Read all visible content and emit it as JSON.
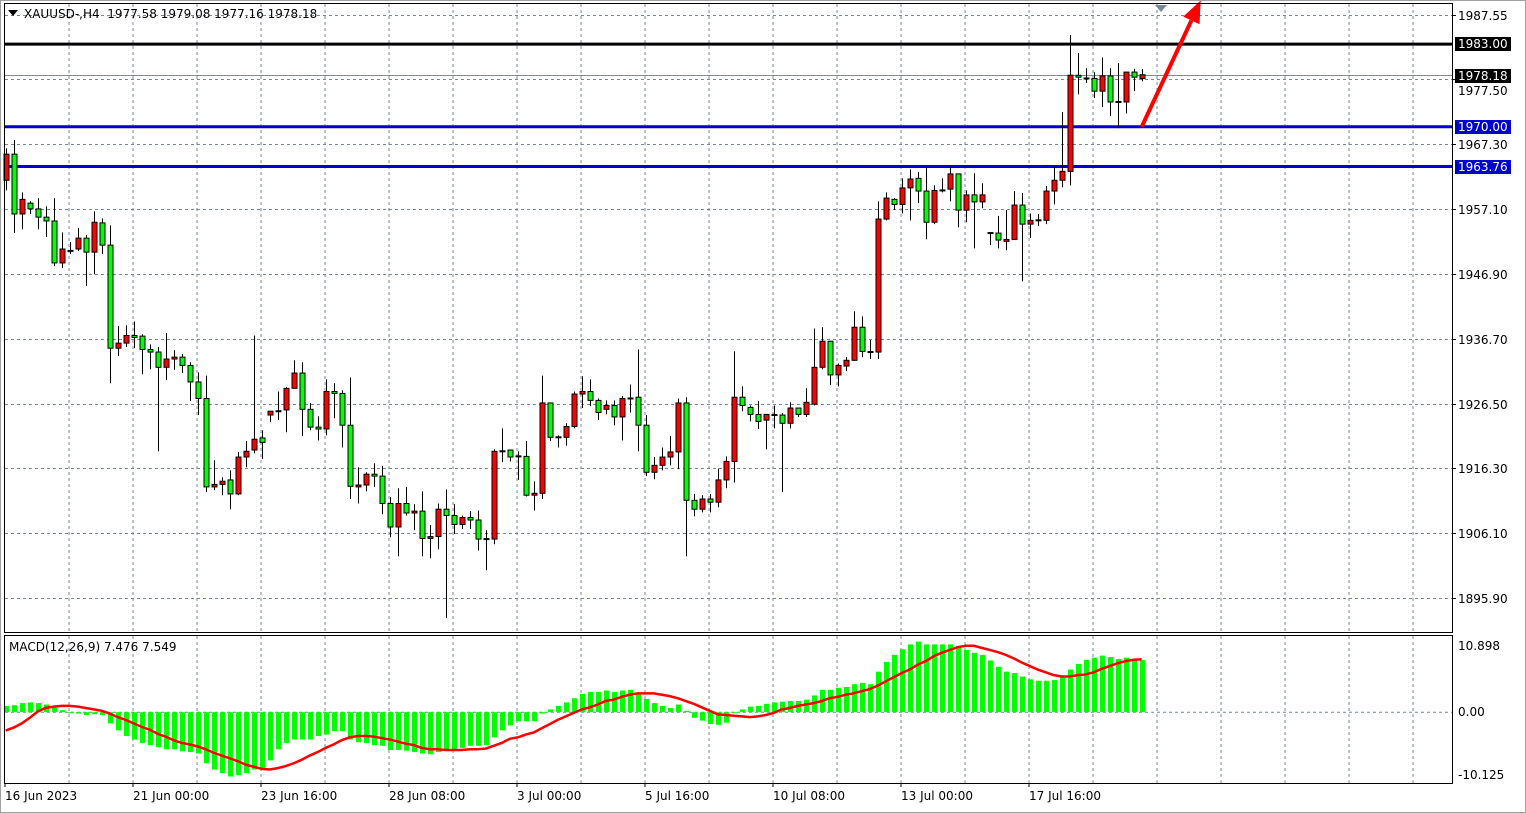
{
  "header": {
    "symbol_label": "XAUUSD-,H4",
    "ohlc": "1977.58 1979.08 1977.16 1978.18"
  },
  "colors": {
    "bull_candle": "#ff0000",
    "bear_candle": "#00ff00",
    "grid": "#778899",
    "support_line": "#0000cc",
    "resistance_line": "#000000",
    "arrow": "#ff0000",
    "macd_histogram": "#00ff00",
    "macd_signal": "#ff0000"
  },
  "chart_data": [
    {
      "type": "candlestick",
      "timeframe": "H4",
      "ylim": [
        1890.6,
        1989.3
      ],
      "grid": true,
      "y_ticks": [
        "1987.55",
        "1977.50",
        "1967.30",
        "1957.10",
        "1946.90",
        "1936.70",
        "1926.50",
        "1916.30",
        "1906.10",
        "1895.90"
      ],
      "x_ticks": [
        "16 Jun 2023",
        "21 Jun 00:00",
        "23 Jun 16:00",
        "28 Jun 08:00",
        "3 Jul 00:00",
        "5 Jul 16:00",
        "10 Jul 08:00",
        "13 Jul 00:00",
        "17 Jul 16:00"
      ],
      "x_tick_every_bars": 16,
      "bid_price": "1978.18",
      "horizontal_lines": [
        {
          "price": "1983.00",
          "color": "#000000"
        },
        {
          "price": "1970.00",
          "color": "#0000cc"
        },
        {
          "price": "1963.76",
          "color": "#0000cc"
        }
      ],
      "arrow": {
        "from_price": 1970.0,
        "from_bar": 142,
        "to_price": 1990.0,
        "to_bar": 149,
        "direction": "up"
      },
      "ohlc": [
        [
          1961.6,
          1966.6,
          1960.0,
          1965.7
        ],
        [
          1965.7,
          1967.9,
          1953.3,
          1956.3
        ],
        [
          1956.3,
          1959.7,
          1953.9,
          1958.6
        ],
        [
          1958.0,
          1958.3,
          1956.3,
          1957.1
        ],
        [
          1957.1,
          1958.8,
          1953.9,
          1955.8
        ],
        [
          1955.8,
          1957.5,
          1952.7,
          1955.2
        ],
        [
          1955.2,
          1958.8,
          1948.1,
          1948.6
        ],
        [
          1948.6,
          1953.4,
          1947.8,
          1950.8
        ],
        [
          1950.5,
          1951.9,
          1950.0,
          1950.5
        ],
        [
          1950.8,
          1954.1,
          1950.5,
          1952.5
        ],
        [
          1952.5,
          1953.0,
          1945.0,
          1950.3
        ],
        [
          1950.3,
          1956.7,
          1946.8,
          1955.0
        ],
        [
          1954.9,
          1955.6,
          1950.0,
          1951.4
        ],
        [
          1951.4,
          1954.5,
          1929.7,
          1935.2
        ],
        [
          1935.2,
          1938.7,
          1934.0,
          1936.0
        ],
        [
          1936.0,
          1938.8,
          1935.4,
          1937.2
        ],
        [
          1937.2,
          1939.4,
          1935.2,
          1936.9
        ],
        [
          1937.1,
          1937.4,
          1931.1,
          1935.0
        ],
        [
          1935.0,
          1935.8,
          1931.9,
          1934.6
        ],
        [
          1934.6,
          1935.4,
          1919.0,
          1932.2
        ],
        [
          1932.2,
          1937.6,
          1930.2,
          1933.5
        ],
        [
          1933.5,
          1934.9,
          1931.8,
          1933.8
        ],
        [
          1933.8,
          1934.3,
          1931.3,
          1932.5
        ],
        [
          1932.5,
          1933.0,
          1926.9,
          1929.9
        ],
        [
          1929.9,
          1931.4,
          1924.7,
          1927.3
        ],
        [
          1927.3,
          1930.9,
          1912.6,
          1913.4
        ],
        [
          1913.4,
          1917.6,
          1912.9,
          1913.8
        ],
        [
          1913.8,
          1914.9,
          1912.1,
          1914.3
        ],
        [
          1914.5,
          1916.0,
          1909.9,
          1912.3
        ],
        [
          1912.3,
          1918.9,
          1912.1,
          1918.1
        ],
        [
          1918.1,
          1920.6,
          1916.5,
          1919.0
        ],
        [
          1919.2,
          1937.2,
          1918.7,
          1920.9
        ],
        [
          1921.1,
          1922.3,
          1917.8,
          1920.4
        ],
        [
          1924.7,
          1925.3,
          1923.6,
          1925.3
        ],
        [
          1925.3,
          1928.4,
          1923.9,
          1925.3
        ],
        [
          1925.5,
          1929.1,
          1922.0,
          1928.9
        ],
        [
          1928.9,
          1933.3,
          1928.9,
          1931.3
        ],
        [
          1931.3,
          1933.0,
          1921.4,
          1925.6
        ],
        [
          1925.6,
          1926.6,
          1922.3,
          1922.8
        ],
        [
          1922.8,
          1924.5,
          1920.7,
          1922.5
        ],
        [
          1922.5,
          1930.3,
          1921.5,
          1928.4
        ],
        [
          1928.4,
          1929.7,
          1924.2,
          1928.1
        ],
        [
          1928.1,
          1928.6,
          1919.6,
          1923.1
        ],
        [
          1923.1,
          1930.6,
          1911.5,
          1913.5
        ],
        [
          1913.4,
          1916.5,
          1910.8,
          1913.7
        ],
        [
          1913.7,
          1915.7,
          1912.7,
          1915.4
        ],
        [
          1915.4,
          1917.1,
          1913.4,
          1915.1
        ],
        [
          1915.1,
          1916.7,
          1909.1,
          1910.8
        ],
        [
          1910.8,
          1911.8,
          1905.5,
          1907.1
        ],
        [
          1907.1,
          1913.2,
          1902.5,
          1910.8
        ],
        [
          1910.8,
          1913.4,
          1908.9,
          1909.3
        ],
        [
          1909.3,
          1910.7,
          1906.6,
          1909.6
        ],
        [
          1909.6,
          1912.7,
          1902.5,
          1905.3
        ],
        [
          1905.3,
          1907.4,
          1902.2,
          1905.6
        ],
        [
          1905.6,
          1910.8,
          1903.6,
          1909.9
        ],
        [
          1909.9,
          1913.0,
          1892.8,
          1908.9
        ],
        [
          1908.9,
          1910.7,
          1906.0,
          1907.5
        ],
        [
          1907.5,
          1908.9,
          1906.8,
          1908.6
        ],
        [
          1908.6,
          1909.6,
          1906.8,
          1908.2
        ],
        [
          1908.2,
          1909.7,
          1903.4,
          1905.2
        ],
        [
          1905.2,
          1906.6,
          1900.3,
          1905.2
        ],
        [
          1905.2,
          1919.3,
          1904.4,
          1919.0
        ],
        [
          1919.0,
          1922.6,
          1917.3,
          1919.0
        ],
        [
          1919.2,
          1919.2,
          1917.4,
          1918.1
        ],
        [
          1918.1,
          1919.0,
          1914.5,
          1918.2
        ],
        [
          1918.2,
          1920.6,
          1911.9,
          1912.1
        ],
        [
          1912.1,
          1914.3,
          1909.7,
          1912.4
        ],
        [
          1912.4,
          1930.9,
          1911.5,
          1926.6
        ],
        [
          1926.6,
          1926.6,
          1920.6,
          1921.2
        ],
        [
          1921.2,
          1921.5,
          1919.6,
          1921.2
        ],
        [
          1921.2,
          1923.4,
          1919.9,
          1922.9
        ],
        [
          1922.9,
          1928.4,
          1922.6,
          1928.0
        ],
        [
          1928.0,
          1930.8,
          1925.8,
          1928.4
        ],
        [
          1928.4,
          1930.3,
          1926.1,
          1927.0
        ],
        [
          1927.0,
          1927.3,
          1923.9,
          1925.1
        ],
        [
          1925.6,
          1927.0,
          1924.8,
          1926.2
        ],
        [
          1926.2,
          1927.0,
          1923.1,
          1924.4
        ],
        [
          1924.4,
          1927.7,
          1920.7,
          1927.3
        ],
        [
          1927.3,
          1929.5,
          1925.1,
          1927.3
        ],
        [
          1927.5,
          1935.0,
          1919.0,
          1923.1
        ],
        [
          1923.1,
          1924.7,
          1915.1,
          1915.7
        ],
        [
          1915.7,
          1918.1,
          1914.6,
          1916.8
        ],
        [
          1916.8,
          1919.6,
          1916.0,
          1918.1
        ],
        [
          1918.1,
          1921.4,
          1916.8,
          1918.9
        ],
        [
          1918.9,
          1927.3,
          1916.2,
          1926.6
        ],
        [
          1926.6,
          1927.5,
          1902.5,
          1911.3
        ],
        [
          1911.3,
          1912.3,
          1908.8,
          1909.9
        ],
        [
          1909.9,
          1912.1,
          1909.4,
          1911.5
        ],
        [
          1911.5,
          1912.3,
          1909.4,
          1911.0
        ],
        [
          1911.0,
          1916.3,
          1910.2,
          1914.5
        ],
        [
          1914.5,
          1918.2,
          1913.2,
          1917.4
        ],
        [
          1917.4,
          1934.7,
          1914.1,
          1927.5
        ],
        [
          1927.5,
          1929.2,
          1925.3,
          1926.2
        ],
        [
          1925.9,
          1926.2,
          1923.7,
          1924.8
        ],
        [
          1924.8,
          1926.9,
          1922.5,
          1923.7
        ],
        [
          1923.9,
          1924.8,
          1919.3,
          1924.8
        ],
        [
          1924.7,
          1926.2,
          1922.6,
          1924.7
        ],
        [
          1924.7,
          1925.0,
          1912.6,
          1923.4
        ],
        [
          1923.4,
          1926.7,
          1922.6,
          1925.8
        ],
        [
          1925.8,
          1925.8,
          1924.4,
          1924.8
        ],
        [
          1924.8,
          1928.9,
          1924.4,
          1926.7
        ],
        [
          1926.4,
          1938.3,
          1926.2,
          1932.2
        ],
        [
          1932.2,
          1938.5,
          1931.9,
          1936.3
        ],
        [
          1936.3,
          1936.3,
          1929.4,
          1931.0
        ],
        [
          1931.0,
          1932.8,
          1929.2,
          1932.5
        ],
        [
          1932.4,
          1933.8,
          1931.6,
          1933.3
        ],
        [
          1933.3,
          1941.0,
          1933.2,
          1938.5
        ],
        [
          1938.5,
          1940.2,
          1933.8,
          1934.7
        ],
        [
          1934.6,
          1936.5,
          1933.5,
          1934.6
        ],
        [
          1934.6,
          1958.3,
          1933.5,
          1955.5
        ],
        [
          1955.5,
          1959.7,
          1955.3,
          1958.8
        ],
        [
          1958.6,
          1958.8,
          1956.9,
          1957.8
        ],
        [
          1957.8,
          1961.9,
          1956.4,
          1960.4
        ],
        [
          1960.4,
          1963.3,
          1955.3,
          1961.8
        ],
        [
          1961.9,
          1962.9,
          1958.0,
          1959.9
        ],
        [
          1959.9,
          1963.5,
          1952.3,
          1955.0
        ],
        [
          1955.0,
          1960.8,
          1954.7,
          1960.0
        ],
        [
          1960.0,
          1961.9,
          1959.7,
          1960.0
        ],
        [
          1960.2,
          1963.7,
          1958.3,
          1962.6
        ],
        [
          1962.6,
          1962.6,
          1954.2,
          1956.9
        ],
        [
          1956.9,
          1960.0,
          1955.0,
          1959.3
        ],
        [
          1959.3,
          1962.7,
          1950.9,
          1958.2
        ],
        [
          1958.2,
          1961.1,
          1957.2,
          1959.3
        ],
        [
          1953.3,
          1953.4,
          1951.4,
          1953.3
        ],
        [
          1953.3,
          1956.0,
          1950.9,
          1952.2
        ],
        [
          1952.0,
          1956.9,
          1950.6,
          1952.3
        ],
        [
          1952.3,
          1959.9,
          1952.2,
          1957.7
        ],
        [
          1957.7,
          1959.6,
          1945.7,
          1954.7
        ],
        [
          1954.7,
          1956.4,
          1952.5,
          1955.3
        ],
        [
          1955.3,
          1956.3,
          1954.4,
          1955.3
        ],
        [
          1955.3,
          1960.7,
          1954.7,
          1959.9
        ],
        [
          1959.9,
          1963.7,
          1957.8,
          1961.6
        ],
        [
          1961.6,
          1972.3,
          1960.5,
          1963.0
        ],
        [
          1963.0,
          1984.4,
          1960.8,
          1978.1
        ],
        [
          1978.1,
          1981.6,
          1975.1,
          1977.8
        ],
        [
          1977.6,
          1979.2,
          1976.9,
          1977.6
        ],
        [
          1977.6,
          1978.6,
          1974.5,
          1975.6
        ],
        [
          1975.6,
          1980.9,
          1973.1,
          1978.0
        ],
        [
          1978.0,
          1979.2,
          1971.7,
          1973.9
        ],
        [
          1973.9,
          1980.0,
          1969.8,
          1973.9
        ],
        [
          1973.9,
          1978.6,
          1972.1,
          1978.6
        ],
        [
          1978.6,
          1979.1,
          1975.6,
          1977.8
        ],
        [
          1977.58,
          1979.08,
          1977.16,
          1978.18
        ]
      ]
    },
    {
      "type": "bar+line",
      "title": "MACD(12,26,9) 7.476 7.549",
      "ylim": [
        -10.125,
        10.898
      ],
      "y_ticks": [
        "10.898",
        "0.00",
        "-10.125"
      ],
      "histogram": [
        0.9,
        1.0,
        1.3,
        1.4,
        1.3,
        1.1,
        0.6,
        0.3,
        -0.1,
        -0.2,
        -0.4,
        -0.3,
        -0.4,
        -1.6,
        -2.6,
        -3.4,
        -3.9,
        -4.4,
        -4.7,
        -5.0,
        -5.3,
        -5.3,
        -5.6,
        -5.7,
        -5.9,
        -7.3,
        -8.2,
        -8.7,
        -9.2,
        -9.0,
        -8.7,
        -8.2,
        -8.2,
        -6.9,
        -5.3,
        -4.4,
        -3.9,
        -3.9,
        -3.9,
        -3.4,
        -3.2,
        -2.7,
        -2.7,
        -3.9,
        -4.3,
        -4.4,
        -4.7,
        -4.8,
        -5.4,
        -5.4,
        -5.5,
        -5.7,
        -5.9,
        -6.0,
        -5.7,
        -5.4,
        -5.3,
        -5.1,
        -4.8,
        -4.8,
        -4.7,
        -3.6,
        -2.6,
        -1.9,
        -1.3,
        -1.3,
        -1.3,
        -0.2,
        0.4,
        0.9,
        1.4,
        2.0,
        2.6,
        2.9,
        2.9,
        3.1,
        2.9,
        3.1,
        3.2,
        2.6,
        1.9,
        1.3,
        0.9,
        0.6,
        1.1,
        0.2,
        -0.8,
        -1.2,
        -1.7,
        -1.8,
        -1.5,
        0.0,
        0.4,
        0.8,
        0.9,
        1.2,
        1.4,
        1.5,
        1.6,
        1.6,
        1.8,
        2.4,
        3.2,
        3.2,
        3.5,
        3.6,
        4.0,
        4.2,
        4.0,
        5.8,
        7.2,
        8.2,
        9.0,
        9.7,
        10.1,
        9.7,
        9.7,
        9.7,
        9.7,
        9.5,
        8.9,
        8.5,
        8.2,
        7.4,
        6.5,
        5.8,
        5.6,
        5.1,
        4.7,
        4.5,
        4.5,
        4.6,
        5.1,
        6.1,
        6.9,
        7.5,
        7.8,
        8.1,
        7.9,
        7.6,
        7.8,
        7.5,
        7.476
      ],
      "signal": [
        -2.6,
        -2.2,
        -1.6,
        -0.8,
        0.1,
        0.6,
        0.8,
        0.9,
        0.9,
        0.8,
        0.6,
        0.4,
        0.2,
        -0.2,
        -0.7,
        -1.1,
        -1.6,
        -2.1,
        -2.5,
        -3.1,
        -3.5,
        -4.0,
        -4.4,
        -4.6,
        -4.9,
        -5.3,
        -5.8,
        -6.2,
        -6.6,
        -7.0,
        -7.5,
        -7.8,
        -8.1,
        -8.2,
        -8.0,
        -7.7,
        -7.3,
        -6.8,
        -6.2,
        -5.7,
        -5.1,
        -4.6,
        -4.0,
        -3.6,
        -3.4,
        -3.4,
        -3.5,
        -3.7,
        -3.9,
        -4.2,
        -4.5,
        -4.7,
        -5.1,
        -5.3,
        -5.3,
        -5.4,
        -5.4,
        -5.4,
        -5.3,
        -5.3,
        -5.2,
        -4.8,
        -4.4,
        -3.8,
        -3.6,
        -3.2,
        -2.9,
        -2.3,
        -1.7,
        -1.1,
        -0.6,
        -0.1,
        0.4,
        0.7,
        1.1,
        1.6,
        1.8,
        2.2,
        2.5,
        2.7,
        2.7,
        2.7,
        2.5,
        2.3,
        2.0,
        1.6,
        1.2,
        0.7,
        0.2,
        -0.3,
        -0.4,
        -0.5,
        -0.6,
        -0.7,
        -0.6,
        -0.4,
        -0.1,
        0.4,
        0.6,
        0.9,
        1.1,
        1.3,
        1.6,
        2.0,
        2.2,
        2.5,
        2.7,
        3.0,
        3.3,
        3.8,
        4.4,
        5.0,
        5.6,
        6.1,
        6.8,
        7.3,
        8.0,
        8.5,
        8.9,
        9.3,
        9.5,
        9.5,
        9.2,
        8.9,
        8.6,
        8.2,
        7.7,
        7.1,
        6.6,
        6.1,
        5.7,
        5.3,
        5.1,
        5.1,
        5.3,
        5.4,
        5.7,
        6.2,
        6.6,
        7.0,
        7.3,
        7.5,
        7.549
      ]
    }
  ]
}
